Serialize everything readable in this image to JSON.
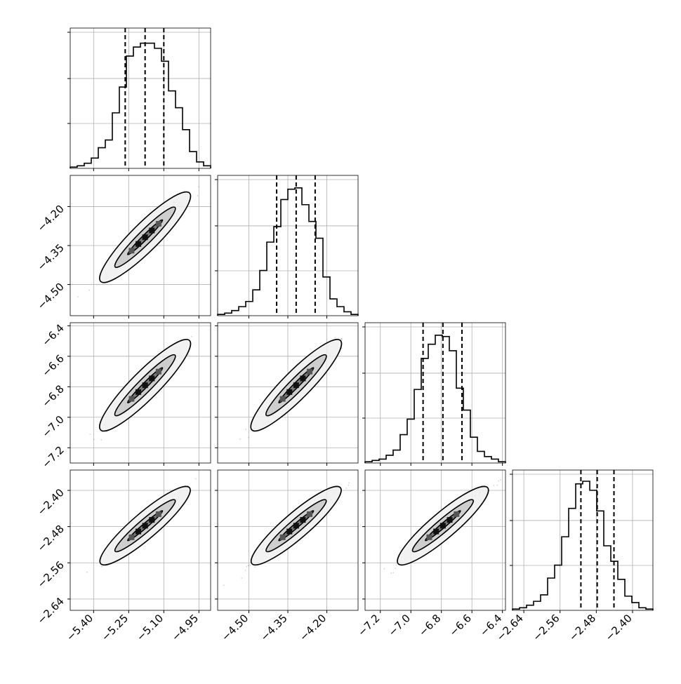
{
  "chart_data": {
    "type": "corner",
    "title": "",
    "grid": true,
    "colors": {
      "line": "#000000",
      "grid": "#b0b0b0",
      "scatter": "#808080"
    },
    "params": [
      {
        "range": [
          -5.5,
          -4.9
        ],
        "ticks": [
          -5.4,
          -5.25,
          -5.1,
          -4.95
        ],
        "tick_labels": [
          "−5.40",
          "−5.25",
          "−5.10",
          "−4.95"
        ],
        "quantiles": [
          -5.265,
          -5.18,
          -5.1
        ],
        "hist": [
          0.01,
          0.02,
          0.04,
          0.08,
          0.16,
          0.22,
          0.43,
          0.63,
          0.87,
          0.94,
          0.97,
          0.97,
          0.93,
          0.83,
          0.6,
          0.47,
          0.3,
          0.13,
          0.05,
          0.02
        ]
      },
      {
        "range": [
          -4.62,
          -4.08
        ],
        "ticks": [
          -4.5,
          -4.35,
          -4.2
        ],
        "tick_labels": [
          "−4.50",
          "−4.35",
          "−4.20"
        ],
        "quantiles": [
          -4.393,
          -4.318,
          -4.245
        ],
        "hist": [
          0.01,
          0.02,
          0.04,
          0.07,
          0.11,
          0.2,
          0.35,
          0.57,
          0.69,
          0.9,
          0.98,
          0.99,
          0.86,
          0.73,
          0.6,
          0.3,
          0.13,
          0.07,
          0.03,
          0.01
        ]
      },
      {
        "range": [
          -7.3,
          -6.38
        ],
        "ticks": [
          -7.2,
          -7.0,
          -6.8,
          -6.6,
          -6.4
        ],
        "tick_labels": [
          "−7.2",
          "−7.0",
          "−6.8",
          "−6.6",
          "−6.4"
        ],
        "quantiles": [
          -6.92,
          -6.79,
          -6.665
        ],
        "hist": [
          0.01,
          0.02,
          0.03,
          0.06,
          0.1,
          0.22,
          0.34,
          0.57,
          0.81,
          0.92,
          0.99,
          0.98,
          0.87,
          0.58,
          0.41,
          0.2,
          0.09,
          0.05,
          0.03,
          0.01
        ]
      },
      {
        "range": [
          -2.665,
          -2.355
        ],
        "ticks": [
          -2.64,
          -2.56,
          -2.48,
          -2.4
        ],
        "tick_labels": [
          "−2.64",
          "−2.56",
          "−2.48",
          "−2.40"
        ],
        "quantiles": [
          -2.514,
          -2.478,
          -2.441
        ],
        "hist": [
          0.01,
          0.02,
          0.04,
          0.07,
          0.12,
          0.25,
          0.35,
          0.57,
          0.79,
          0.98,
          1.0,
          0.93,
          0.77,
          0.5,
          0.38,
          0.24,
          0.11,
          0.06,
          0.02,
          0.01
        ]
      }
    ]
  }
}
